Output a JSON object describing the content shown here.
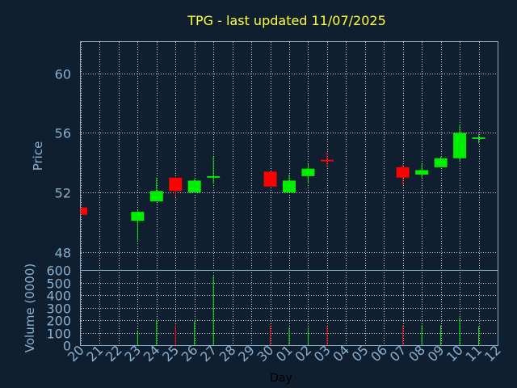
{
  "chart_data": [
    {
      "type": "candlestick",
      "title": "TPG - last updated 11/07/2025",
      "ylabel": "Price",
      "ylim": [
        46.8,
        62.1
      ],
      "yticks": [
        48,
        52,
        56,
        60
      ],
      "grid": true,
      "up_color": "#00ee00",
      "down_color": "#ff0000",
      "candles": [
        {
          "day": "20",
          "open": 51.0,
          "high": 51.0,
          "low": 50.5,
          "close": 50.5
        },
        {
          "day": "23",
          "open": 50.1,
          "high": 50.8,
          "low": 48.7,
          "close": 50.7
        },
        {
          "day": "24",
          "open": 51.4,
          "high": 53.0,
          "low": 51.4,
          "close": 52.1
        },
        {
          "day": "25",
          "open": 53.0,
          "high": 53.0,
          "low": 51.7,
          "close": 52.1
        },
        {
          "day": "26",
          "open": 52.0,
          "high": 52.9,
          "low": 52.0,
          "close": 52.8
        },
        {
          "day": "27",
          "open": 53.0,
          "high": 54.4,
          "low": 52.6,
          "close": 53.1
        },
        {
          "day": "30",
          "open": 53.4,
          "high": 53.4,
          "low": 52.4,
          "close": 52.4
        },
        {
          "day": "01",
          "open": 52.0,
          "high": 53.2,
          "low": 52.0,
          "close": 52.8
        },
        {
          "day": "02",
          "open": 53.1,
          "high": 53.9,
          "low": 52.6,
          "close": 53.6
        },
        {
          "day": "03",
          "open": 54.2,
          "high": 54.7,
          "low": 53.7,
          "close": 54.1
        },
        {
          "day": "07",
          "open": 53.7,
          "high": 53.9,
          "low": 52.5,
          "close": 53.0
        },
        {
          "day": "08",
          "open": 53.2,
          "high": 53.9,
          "low": 53.0,
          "close": 53.5
        },
        {
          "day": "09",
          "open": 53.7,
          "high": 54.4,
          "low": 53.7,
          "close": 54.3
        },
        {
          "day": "10",
          "open": 54.3,
          "high": 56.5,
          "low": 54.1,
          "close": 56.0
        },
        {
          "day": "11",
          "open": 55.6,
          "high": 55.9,
          "low": 55.3,
          "close": 55.7
        }
      ]
    },
    {
      "type": "bar",
      "ylabel": "Volume (0000)",
      "xlabel": "Day",
      "ylim": [
        0,
        600
      ],
      "yticks": [
        0,
        100,
        200,
        300,
        400,
        500,
        600
      ],
      "grid": true,
      "categories": [
        "20",
        "21",
        "22",
        "23",
        "24",
        "25",
        "26",
        "27",
        "28",
        "29",
        "30",
        "01",
        "02",
        "03",
        "04",
        "05",
        "06",
        "07",
        "08",
        "09",
        "10",
        "11",
        "12"
      ],
      "volumes": [
        {
          "day": "23",
          "value": 110,
          "direction": "up"
        },
        {
          "day": "24",
          "value": 200,
          "direction": "up"
        },
        {
          "day": "25",
          "value": 160,
          "direction": "down"
        },
        {
          "day": "26",
          "value": 190,
          "direction": "up"
        },
        {
          "day": "27",
          "value": 550,
          "direction": "up"
        },
        {
          "day": "30",
          "value": 160,
          "direction": "down"
        },
        {
          "day": "01",
          "value": 140,
          "direction": "up"
        },
        {
          "day": "02",
          "value": 140,
          "direction": "up"
        },
        {
          "day": "03",
          "value": 150,
          "direction": "down"
        },
        {
          "day": "07",
          "value": 160,
          "direction": "down"
        },
        {
          "day": "08",
          "value": 160,
          "direction": "up"
        },
        {
          "day": "09",
          "value": 160,
          "direction": "up"
        },
        {
          "day": "10",
          "value": 220,
          "direction": "up"
        },
        {
          "day": "11",
          "value": 150,
          "direction": "up"
        }
      ]
    }
  ]
}
